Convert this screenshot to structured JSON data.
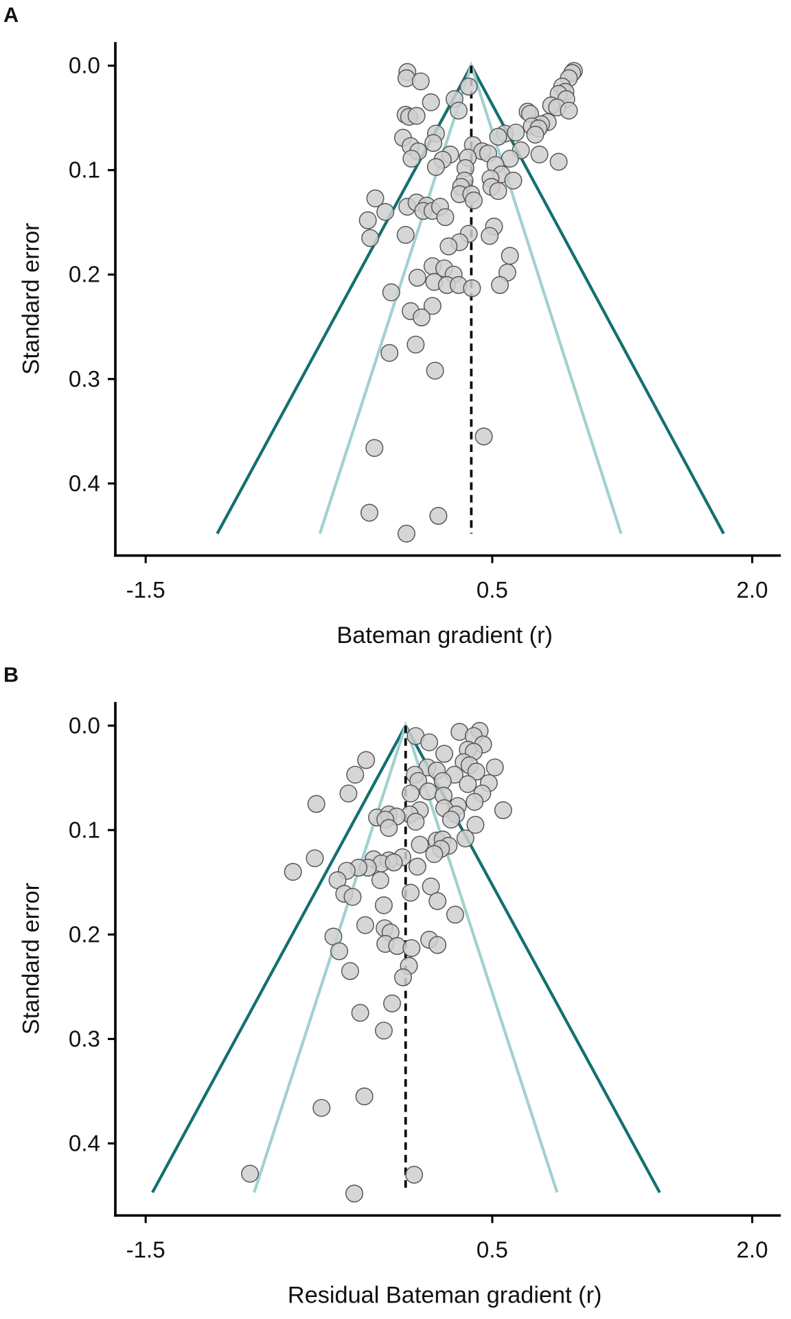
{
  "chart_data": [
    {
      "type": "scatter",
      "panel_label": "A",
      "xlabel": "Bateman gradient (r)",
      "ylabel": "Standard error",
      "xlim": [
        -1.675,
        2.165
      ],
      "ylim": [
        -0.0226,
        0.469
      ],
      "y_inverted": true,
      "xticks": [
        -1.5,
        0.5,
        {
          "value": 2,
          "label": "2.0"
        }
      ],
      "yticks": [
        {
          "value": 0,
          "label": "0.0"
        },
        0.1,
        0.2,
        0.3,
        0.4
      ],
      "series": [
        {
          "type": "scatter",
          "color": "#cfcfcf",
          "x": [
            0.01,
            0.005,
            0.087,
            0.364,
            0.282,
            0.146,
            0.306,
            0,
            0.02,
            0.063,
            0.971,
            0.961,
            0.942,
            0.903,
            0.922,
            0.883,
            0.927,
            0.84,
            0.874,
            0.942,
            0.704,
            0.718,
            0.82,
            0.782,
            0.728,
            0.767,
            0.748,
            0.573,
            0.534,
            0.636,
            0.665,
            0.772,
            0.883,
            0.602,
            -0.015,
            0.175,
            0.16,
            0.029,
            0.073,
            0.034,
            0.388,
            0.442,
            0.476,
            0.257,
            0.359,
            0.214,
            0.175,
            0.345,
            0.519,
            0.553,
            0.49,
            0.621,
            0.495,
            0.534,
            0.34,
            0.32,
            0.311,
            0.379,
            0.393,
            -0.175,
            -0.117,
            0.01,
            0.063,
            0.122,
            0.102,
            0.155,
            0.199,
            -0.218,
            -0.204,
            0.0,
            0.229,
            0.364,
            0.51,
            0.485,
            0.311,
            0.248,
            0.602,
            0.587,
            0.544,
            0.155,
            0.223,
            0.068,
            0.277,
            0.165,
            0.238,
            0.306,
            0.383,
            -0.083,
            0.155,
            0.029,
            0.092,
            -0.093,
            0.058,
            0.17,
            0.451,
            -0.18,
            -0.209,
            0.189,
            0.005
          ],
          "values": [
            0.006,
            0.012,
            0.015,
            0.02,
            0.032,
            0.035,
            0.043,
            0.047,
            0.049,
            0.048,
            0.005,
            0.007,
            0.012,
            0.02,
            0.025,
            0.027,
            0.032,
            0.038,
            0.04,
            0.043,
            0.044,
            0.046,
            0.054,
            0.056,
            0.058,
            0.06,
            0.066,
            0.065,
            0.068,
            0.064,
            0.081,
            0.085,
            0.092,
            0.089,
            0.069,
            0.065,
            0.074,
            0.077,
            0.082,
            0.089,
            0.076,
            0.082,
            0.084,
            0.085,
            0.088,
            0.09,
            0.097,
            0.098,
            0.095,
            0.104,
            0.108,
            0.11,
            0.116,
            0.12,
            0.11,
            0.116,
            0.123,
            0.123,
            0.129,
            0.127,
            0.14,
            0.135,
            0.131,
            0.134,
            0.139,
            0.139,
            0.135,
            0.148,
            0.165,
            0.162,
            0.145,
            0.161,
            0.154,
            0.163,
            0.169,
            0.173,
            0.182,
            0.198,
            0.21,
            0.192,
            0.194,
            0.203,
            0.2,
            0.207,
            0.21,
            0.21,
            0.213,
            0.217,
            0.23,
            0.235,
            0.241,
            0.275,
            0.267,
            0.292,
            0.355,
            0.366,
            0.428,
            0.431,
            0.448
          ]
        },
        {
          "type": "line",
          "color": "#15706f",
          "x": [
            -1.087,
            0.379,
            1.835
          ],
          "values": [
            0.448,
            0,
            0.448
          ]
        },
        {
          "type": "line",
          "color": "#a2d1d0",
          "x": [
            -0.495,
            0.379,
            1.243
          ],
          "values": [
            0.448,
            0,
            0.448
          ]
        },
        {
          "type": "line",
          "color": "#000000",
          "dashed": true,
          "x": [
            0.379,
            0.379
          ],
          "values": [
            0,
            0.448
          ]
        }
      ]
    },
    {
      "type": "scatter",
      "panel_label": "B",
      "xlabel": "Residual Bateman gradient (r)",
      "ylabel": "Standard error",
      "xlim": [
        -1.675,
        2.165
      ],
      "ylim": [
        -0.0226,
        0.469
      ],
      "y_inverted": true,
      "xticks": [
        -1.5,
        0.5,
        {
          "value": 2,
          "label": "2.0"
        }
      ],
      "yticks": [
        {
          "value": 0,
          "label": "0.0"
        },
        0.1,
        0.2,
        0.3,
        0.4
      ],
      "series": [
        {
          "type": "scatter",
          "color": "#cfcfcf",
          "x": [
            0.427,
            0.311,
            0.393,
            0.058,
            0.136,
            0.447,
            0.359,
            0.393,
            0.223,
            0.335,
            0.369,
            0.515,
            0.126,
            0.18,
            -0.228,
            -0.291,
            0.282,
            0.408,
            0.053,
            0.073,
            0.214,
            0.359,
            0.48,
            0.442,
            0.131,
            0.029,
            0.219,
            -0.33,
            -0.515,
            0.563,
            0.301,
            0.398,
            0.223,
            0.082,
            0.024,
            -0.165,
            -0.097,
            -0.053,
            -0.117,
            -0.097,
            0.058,
            0.291,
            0.262,
            0.403,
            0.082,
            0.18,
            0.214,
            0.345,
            0.248,
            0.204,
            0.165,
            -0.019,
            -0.185,
            -0.097,
            -0.141,
            -0.068,
            -0.524,
            -0.65,
            -0.218,
            -0.272,
            -0.34,
            0.068,
            -0.146,
            -0.393,
            -0.354,
            -0.306,
            0.146,
            0.029,
            0.184,
            -0.126,
            0.286,
            -0.233,
            -0.417,
            -0.121,
            -0.087,
            -0.117,
            -0.049,
            0.034,
            0.136,
            0.184,
            -0.383,
            0.019,
            -0.015,
            -0.32,
            -0.078,
            -0.262,
            -0.126,
            -0.238,
            -0.485,
            -0.898,
            0.049,
            -0.296
          ],
          "values": [
            0.005,
            0.006,
            0.01,
            0.01,
            0.016,
            0.018,
            0.023,
            0.025,
            0.027,
            0.035,
            0.038,
            0.04,
            0.04,
            0.043,
            0.033,
            0.047,
            0.047,
            0.044,
            0.047,
            0.053,
            0.053,
            0.056,
            0.055,
            0.065,
            0.063,
            0.065,
            0.067,
            0.065,
            0.075,
            0.081,
            0.077,
            0.073,
            0.079,
            0.081,
            0.085,
            0.088,
            0.085,
            0.087,
            0.09,
            0.098,
            0.092,
            0.085,
            0.09,
            0.095,
            0.114,
            0.11,
            0.109,
            0.108,
            0.115,
            0.118,
            0.123,
            0.126,
            0.128,
            0.129,
            0.132,
            0.131,
            0.127,
            0.14,
            0.136,
            0.136,
            0.139,
            0.135,
            0.148,
            0.148,
            0.161,
            0.164,
            0.154,
            0.16,
            0.168,
            0.172,
            0.181,
            0.191,
            0.202,
            0.194,
            0.198,
            0.209,
            0.211,
            0.213,
            0.205,
            0.21,
            0.216,
            0.23,
            0.241,
            0.235,
            0.266,
            0.275,
            0.292,
            0.355,
            0.366,
            0.429,
            0.43,
            0.448
          ]
        },
        {
          "type": "line",
          "color": "#15706f",
          "x": [
            -1.461,
            0,
            1.466
          ],
          "values": [
            0.447,
            0,
            0.447
          ]
        },
        {
          "type": "line",
          "color": "#a2d1d0",
          "x": [
            -0.874,
            0,
            0.874
          ],
          "values": [
            0.447,
            0,
            0.447
          ]
        },
        {
          "type": "line",
          "color": "#000000",
          "dashed": true,
          "x": [
            0,
            0
          ],
          "values": [
            0,
            0.447
          ]
        }
      ]
    }
  ]
}
